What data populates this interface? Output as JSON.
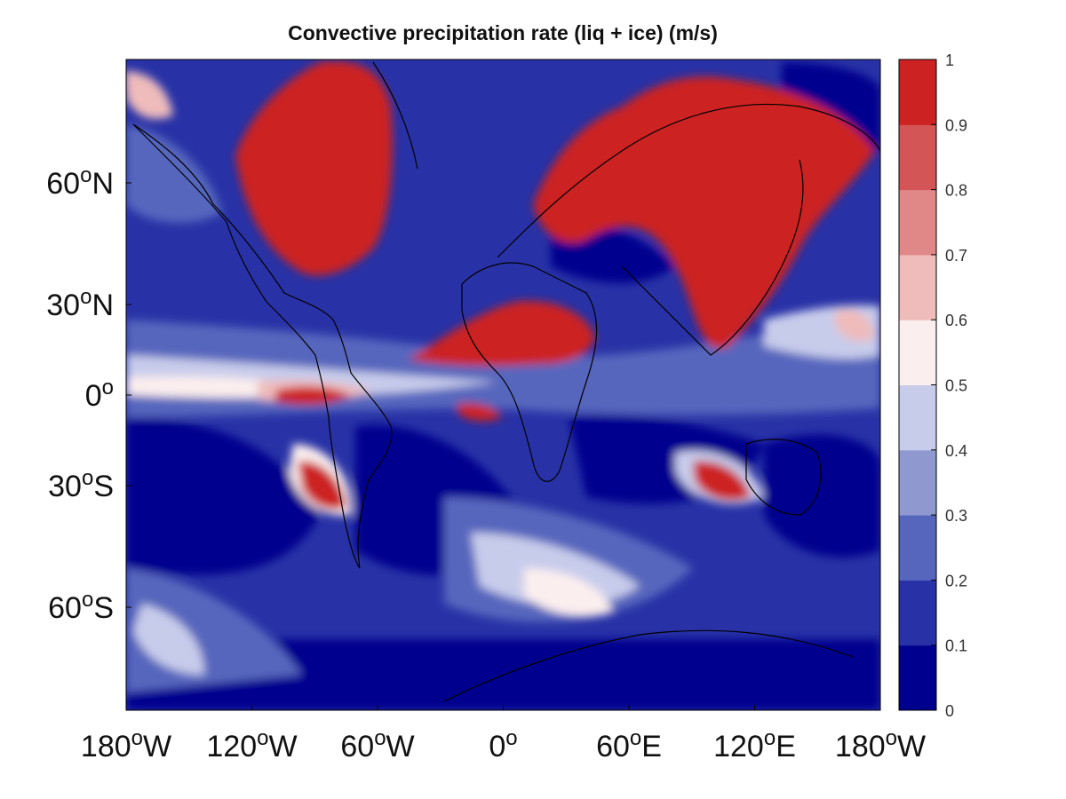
{
  "title": "Convective precipitation rate (liq + ice) (m/s)",
  "latitude_labels": [
    {
      "value": 60,
      "num": "60",
      "hemi": "N"
    },
    {
      "value": 30,
      "num": "30",
      "hemi": "N"
    },
    {
      "value": 0,
      "num": "0",
      "hemi": ""
    },
    {
      "value": -30,
      "num": "30",
      "hemi": "S"
    },
    {
      "value": -60,
      "num": "60",
      "hemi": "S"
    }
  ],
  "longitude_labels": [
    {
      "value": -180,
      "num": "180",
      "hemi": "W"
    },
    {
      "value": -120,
      "num": "120",
      "hemi": "W"
    },
    {
      "value": -60,
      "num": "60",
      "hemi": "W"
    },
    {
      "value": 0,
      "num": "0",
      "hemi": ""
    },
    {
      "value": 60,
      "num": "60",
      "hemi": "E"
    },
    {
      "value": 120,
      "num": "120",
      "hemi": "E"
    },
    {
      "value": 180,
      "num": "180",
      "hemi": "W"
    }
  ],
  "colorbar": {
    "ticks": [
      "0",
      "0.1",
      "0.2",
      "0.3",
      "0.4",
      "0.5",
      "0.6",
      "0.7",
      "0.8",
      "0.9",
      "1"
    ],
    "colors": [
      "#00008e",
      "#2832a6",
      "#5766bd",
      "#8f99d0",
      "#c8cceb",
      "#fbeeee",
      "#efbbbb",
      "#e08888",
      "#d45555",
      "#cc2222"
    ]
  },
  "map_colors": {
    "ocean": "#2832a6",
    "ocean_light": "#5766bd",
    "low": "#00008e",
    "mid_light": "#c8cceb",
    "white": "#fbeeee",
    "pink": "#efbbbb",
    "red": "#cc2222",
    "coast": "#000000"
  }
}
